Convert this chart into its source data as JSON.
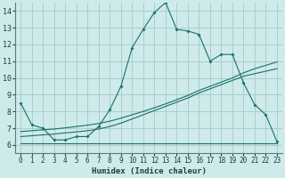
{
  "title": "",
  "xlabel": "Humidex (Indice chaleur)",
  "ylabel": "",
  "background_color": "#ceeaea",
  "grid_color": "#aacece",
  "line_color": "#1a7068",
  "xlim": [
    -0.5,
    23.5
  ],
  "ylim": [
    5.5,
    14.5
  ],
  "xticks": [
    0,
    1,
    2,
    3,
    4,
    5,
    6,
    7,
    8,
    9,
    10,
    11,
    12,
    13,
    14,
    15,
    16,
    17,
    18,
    19,
    20,
    21,
    22,
    23
  ],
  "yticks": [
    6,
    7,
    8,
    9,
    10,
    11,
    12,
    13,
    14
  ],
  "series_main": {
    "x": [
      0,
      1,
      2,
      3,
      4,
      5,
      6,
      7,
      8,
      9,
      10,
      11,
      12,
      13,
      14,
      15,
      16,
      17,
      18,
      19,
      20,
      21,
      22,
      23
    ],
    "y": [
      8.5,
      7.2,
      7.0,
      6.3,
      6.3,
      6.5,
      6.5,
      7.1,
      8.1,
      9.5,
      11.8,
      12.9,
      13.9,
      14.5,
      12.9,
      12.8,
      12.6,
      11.0,
      11.4,
      11.4,
      9.7,
      8.4,
      7.8,
      6.2
    ]
  },
  "series_flat": {
    "x": [
      0,
      23
    ],
    "y": [
      6.1,
      6.1
    ]
  },
  "series_low": {
    "x": [
      0,
      1,
      2,
      3,
      4,
      5,
      6,
      7,
      8,
      9,
      10,
      11,
      12,
      13,
      14,
      15,
      16,
      17,
      18,
      19,
      20,
      21,
      22,
      23
    ],
    "y": [
      6.5,
      6.55,
      6.6,
      6.65,
      6.72,
      6.78,
      6.85,
      6.95,
      7.1,
      7.3,
      7.55,
      7.8,
      8.05,
      8.3,
      8.55,
      8.8,
      9.1,
      9.35,
      9.6,
      9.85,
      10.1,
      10.25,
      10.4,
      10.55
    ]
  },
  "series_mid": {
    "x": [
      0,
      1,
      2,
      3,
      4,
      5,
      6,
      7,
      8,
      9,
      10,
      11,
      12,
      13,
      14,
      15,
      16,
      17,
      18,
      19,
      20,
      21,
      22,
      23
    ],
    "y": [
      6.8,
      6.85,
      6.9,
      6.95,
      7.02,
      7.1,
      7.18,
      7.28,
      7.42,
      7.6,
      7.8,
      8.0,
      8.22,
      8.45,
      8.7,
      8.95,
      9.25,
      9.5,
      9.75,
      10.0,
      10.3,
      10.55,
      10.75,
      10.95
    ]
  }
}
